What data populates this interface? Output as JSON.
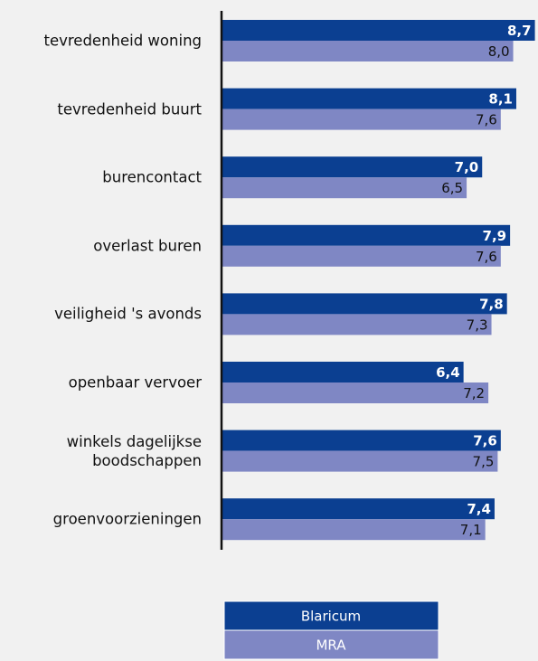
{
  "chart_data": {
    "type": "barh",
    "categories": [
      "tevredenheid woning",
      "tevredenheid buurt",
      "burencontact",
      "overlast buren",
      "veiligheid 's avonds",
      "openbaar vervoer",
      "winkels dagelijkse boodschappen",
      "groenvoorzieningen"
    ],
    "series": [
      {
        "name": "Blaricum",
        "color": "#0b3f91",
        "values": [
          8.7,
          8.1,
          7.0,
          7.9,
          7.8,
          6.4,
          7.6,
          7.4
        ],
        "value_labels": [
          "8,7",
          "8,1",
          "7,0",
          "7,9",
          "7,8",
          "6,4",
          "7,6",
          "7,4"
        ]
      },
      {
        "name": "MRA",
        "color": "#7f87c4",
        "values": [
          8.0,
          7.6,
          6.5,
          7.6,
          7.3,
          7.2,
          7.5,
          7.1
        ],
        "value_labels": [
          "8,0",
          "7,6",
          "6,5",
          "7,6",
          "7,3",
          "7,2",
          "7,5",
          "7,1"
        ]
      }
    ],
    "xlim": [
      -1.4,
      8.8
    ],
    "legend": "bottom"
  }
}
